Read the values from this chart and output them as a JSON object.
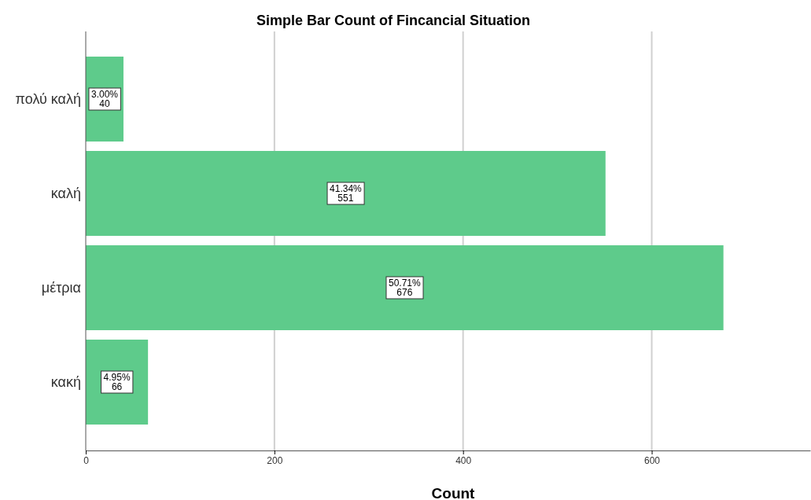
{
  "chart_data": {
    "type": "bar",
    "orientation": "horizontal",
    "title": "Simple Bar Count of Fincancial Situation",
    "xlabel": "Count",
    "categories": [
      "πολύ καλή",
      "καλή",
      "μέτρια",
      "κακή"
    ],
    "values": [
      40,
      551,
      676,
      66
    ],
    "value_labels": [
      "3.00%\n40",
      "41.34%\n551",
      "50.71%\n676",
      "4.95%\n66"
    ],
    "color": "#5ecb8b",
    "xlim": [
      0,
      768
    ],
    "xticks": [
      0,
      200,
      400,
      600
    ],
    "grid": "x"
  }
}
